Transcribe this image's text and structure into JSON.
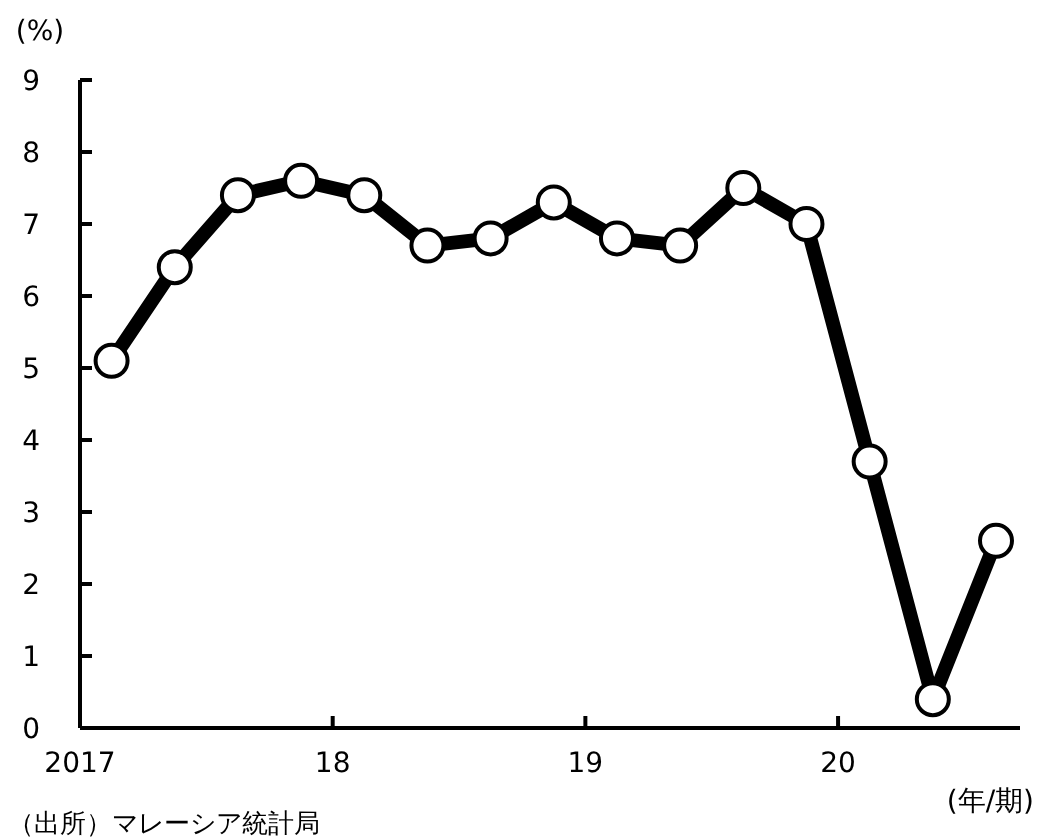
{
  "chart_data": {
    "type": "line",
    "ylabel": "(%)",
    "xlabel": "(年/期)",
    "annotations": [
      "（出所）マレーシア統計局"
    ],
    "x": [
      2017.125,
      2017.375,
      2017.625,
      2017.875,
      2018.125,
      2018.375,
      2018.625,
      2018.875,
      2019.125,
      2019.375,
      2019.625,
      2019.875,
      2020.125,
      2020.375,
      2020.625
    ],
    "series": [
      {
        "color": "#000000",
        "values": [
          5.1,
          6.4,
          7.4,
          7.6,
          7.4,
          6.7,
          6.8,
          7.3,
          6.8,
          6.7,
          7.5,
          7.0,
          3.7,
          0.4,
          2.6
        ]
      }
    ],
    "xlim": [
      2017,
      2020.72
    ],
    "xticks": [
      {
        "value": 2017,
        "label": "2017"
      },
      {
        "value": 2018,
        "label": "18"
      },
      {
        "value": 2019,
        "label": "19"
      },
      {
        "value": 2020,
        "label": "20"
      }
    ],
    "ylim": [
      0,
      9
    ],
    "yticks": [
      0,
      1,
      2,
      3,
      4,
      5,
      6,
      7,
      8,
      9
    ],
    "marker": "circle",
    "line_style": "solid",
    "grid": false
  }
}
